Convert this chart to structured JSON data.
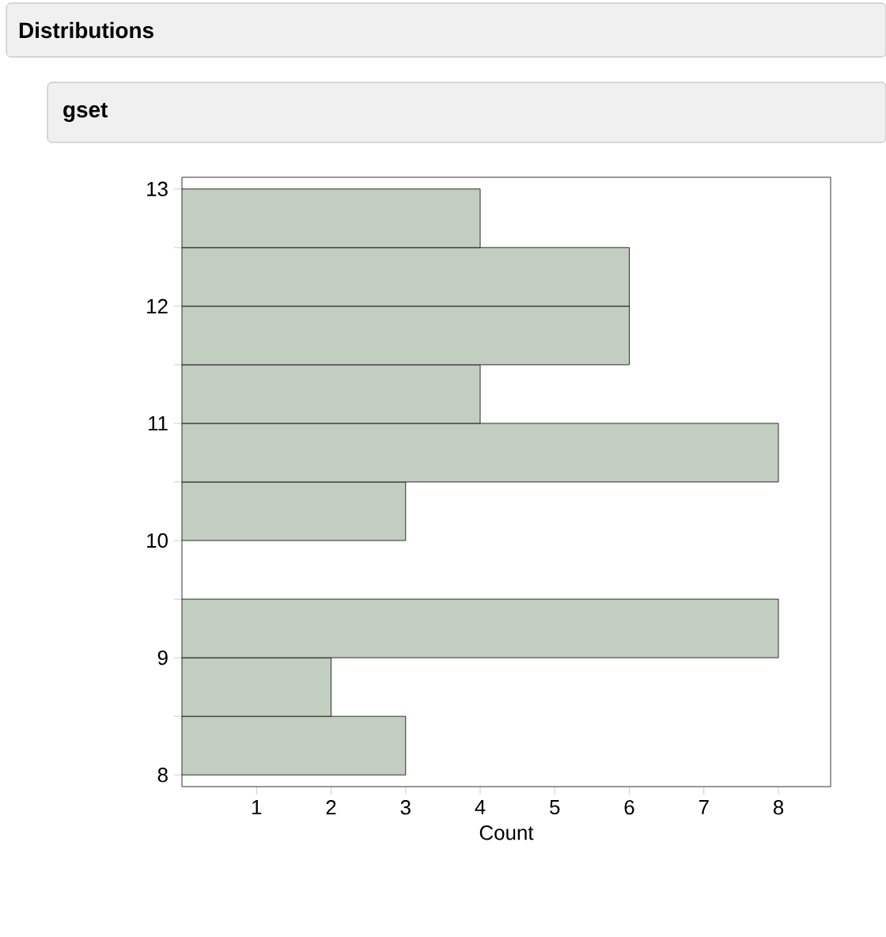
{
  "chart_data": {
    "type": "histogram",
    "orientation": "horizontal",
    "title": "Distributions",
    "subtitle": "gset",
    "xlabel": "Count",
    "bins": [
      8,
      8.5,
      9,
      9.5,
      10,
      10.5,
      11,
      11.5,
      12,
      12.5,
      13
    ],
    "values": [
      3,
      2,
      8,
      0,
      3,
      8,
      4,
      6,
      6,
      4
    ],
    "color": "#c2cfc0",
    "xlim": [
      0,
      8.7
    ],
    "xticks": [
      1,
      2,
      3,
      4,
      5,
      6,
      7,
      8
    ],
    "ylim": [
      7.9,
      13.1
    ],
    "yticks": [
      8,
      {
        "value": 8.5,
        "label": null
      },
      9,
      {
        "value": 9.5,
        "label": null
      },
      10,
      {
        "value": 10.5,
        "label": null
      },
      11,
      {
        "value": 11.5,
        "label": null
      },
      12,
      {
        "value": 12.5,
        "label": null
      },
      13
    ],
    "grid": false
  }
}
